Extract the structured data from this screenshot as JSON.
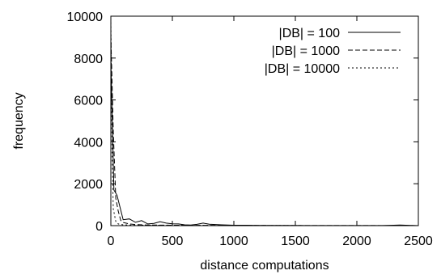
{
  "chart_data": {
    "type": "line",
    "title": "",
    "xlabel": "distance computations",
    "ylabel": "frequency",
    "xlim": [
      0,
      2500
    ],
    "ylim": [
      0,
      10000
    ],
    "xticks": [
      0,
      500,
      1000,
      1500,
      2000,
      2500
    ],
    "yticks": [
      0,
      2000,
      4000,
      6000,
      8000,
      10000
    ],
    "xtick_labels": [
      "0",
      "500",
      "1000",
      "1500",
      "2000",
      "2500"
    ],
    "ytick_labels": [
      "0",
      "2000",
      "4000",
      "6000",
      "8000",
      "10000"
    ],
    "grid": false,
    "legend_position": "top-right",
    "series": [
      {
        "name": "|DB| = 100",
        "style": "solid",
        "x": [
          0,
          25,
          50,
          100,
          150,
          200,
          250,
          300,
          350,
          400,
          450,
          500,
          550,
          600,
          650,
          700,
          750,
          800,
          900,
          1000,
          1100,
          1200,
          1400,
          1600,
          1800,
          2000,
          2200,
          2300,
          2350,
          2500
        ],
        "y": [
          7800,
          1700,
          1450,
          280,
          320,
          160,
          240,
          80,
          110,
          190,
          120,
          90,
          80,
          40,
          30,
          60,
          120,
          70,
          40,
          20,
          20,
          10,
          10,
          5,
          5,
          5,
          5,
          20,
          30,
          0
        ]
      },
      {
        "name": "|DB| = 1000",
        "style": "dashed",
        "x": [
          0,
          20,
          40,
          60,
          80,
          100,
          150,
          200,
          300,
          500,
          1000,
          1500,
          2000,
          2500
        ],
        "y": [
          9100,
          4500,
          1300,
          700,
          250,
          150,
          80,
          50,
          30,
          20,
          10,
          5,
          5,
          0
        ]
      },
      {
        "name": "|DB| = 10000",
        "style": "dotted",
        "x": [
          0,
          10,
          20,
          40,
          60,
          100,
          200,
          500,
          1000,
          2500
        ],
        "y": [
          9900,
          3500,
          800,
          200,
          80,
          40,
          20,
          10,
          5,
          0
        ]
      }
    ]
  }
}
